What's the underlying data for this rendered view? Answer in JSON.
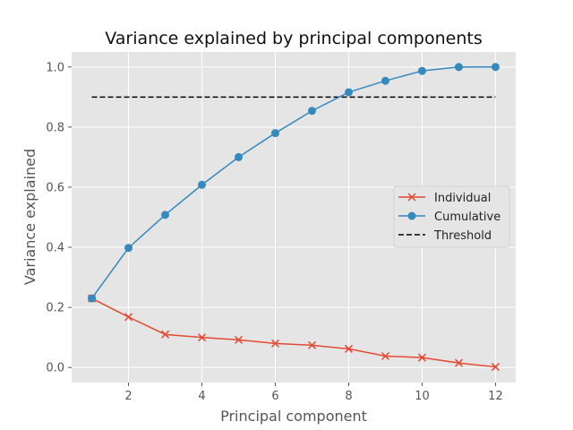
{
  "chart_data": {
    "type": "line",
    "title": "Variance explained by principal components",
    "xlabel": "Principal component",
    "ylabel": "Variance explained",
    "xlim": [
      0.45,
      12.55
    ],
    "ylim": [
      -0.05,
      1.05
    ],
    "xticks": [
      2,
      4,
      6,
      8,
      10,
      12
    ],
    "yticks": [
      "0.0",
      "0.2",
      "0.4",
      "0.6",
      "0.8",
      "1.0"
    ],
    "grid": true,
    "legend_position": "center-right",
    "x": [
      1,
      2,
      3,
      4,
      5,
      6,
      7,
      8,
      9,
      10,
      11,
      12
    ],
    "series": [
      {
        "name": "Individual",
        "marker": "x",
        "color": "#E24A33",
        "values": [
          0.23,
          0.168,
          0.11,
          0.1,
          0.092,
          0.08,
          0.074,
          0.062,
          0.038,
          0.033,
          0.015,
          0.002
        ]
      },
      {
        "name": "Cumulative",
        "marker": "o",
        "color": "#348ABD",
        "values": [
          0.23,
          0.398,
          0.508,
          0.608,
          0.7,
          0.78,
          0.854,
          0.916,
          0.954,
          0.987,
          1.0,
          1.0
        ]
      }
    ],
    "threshold": {
      "name": "Threshold",
      "value": 0.9,
      "x_range": [
        1,
        12
      ],
      "color": "#000000",
      "style": "dashed"
    },
    "background": "#E5E5E5",
    "grid_color": "#FFFFFF"
  }
}
